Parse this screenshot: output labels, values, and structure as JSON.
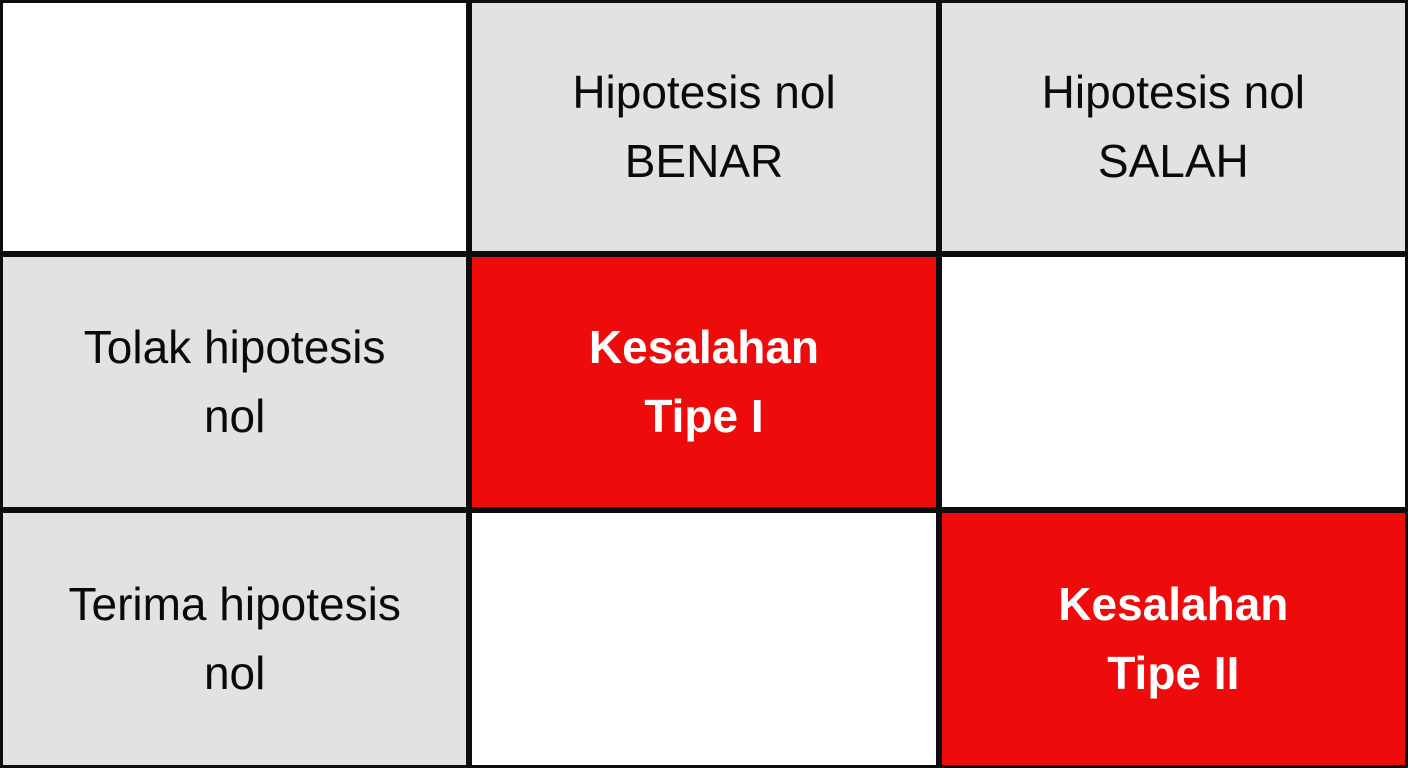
{
  "colors": {
    "grid_line": "#0d0d0d",
    "header_bg": "#e2e2e2",
    "error_bg": "#ee0b0b",
    "error_text": "#ffffff",
    "text": "#0a0a0a",
    "empty_bg": "#ffffff"
  },
  "table": {
    "corner_label": "",
    "column_headers": [
      {
        "label": "Hipotesis nol\nBENAR"
      },
      {
        "label": "Hipotesis nol\nSALAH"
      }
    ],
    "rows": [
      {
        "header": "Tolak hipotesis\nnol",
        "cells": [
          {
            "label": "Kesalahan\nTipe I",
            "type": "type-1-error"
          },
          {
            "label": "",
            "type": "empty"
          }
        ]
      },
      {
        "header": "Terima hipotesis\nnol",
        "cells": [
          {
            "label": "",
            "type": "empty"
          },
          {
            "label": "Kesalahan\nTipe II",
            "type": "type-2-error"
          }
        ]
      }
    ]
  },
  "chart_data": {
    "type": "table",
    "columns": [
      "",
      "Hipotesis nol BENAR",
      "Hipotesis nol SALAH"
    ],
    "rows": [
      [
        "Tolak hipotesis nol",
        "Kesalahan Tipe I",
        ""
      ],
      [
        "Terima hipotesis nol",
        "",
        "Kesalahan Tipe II"
      ]
    ],
    "highlighted_cells": [
      {
        "row": "Tolak hipotesis nol",
        "column": "Hipotesis nol BENAR",
        "value": "Kesalahan Tipe I",
        "highlight_color": "#ee0b0b"
      },
      {
        "row": "Terima hipotesis nol",
        "column": "Hipotesis nol SALAH",
        "value": "Kesalahan Tipe II",
        "highlight_color": "#ee0b0b"
      }
    ]
  }
}
